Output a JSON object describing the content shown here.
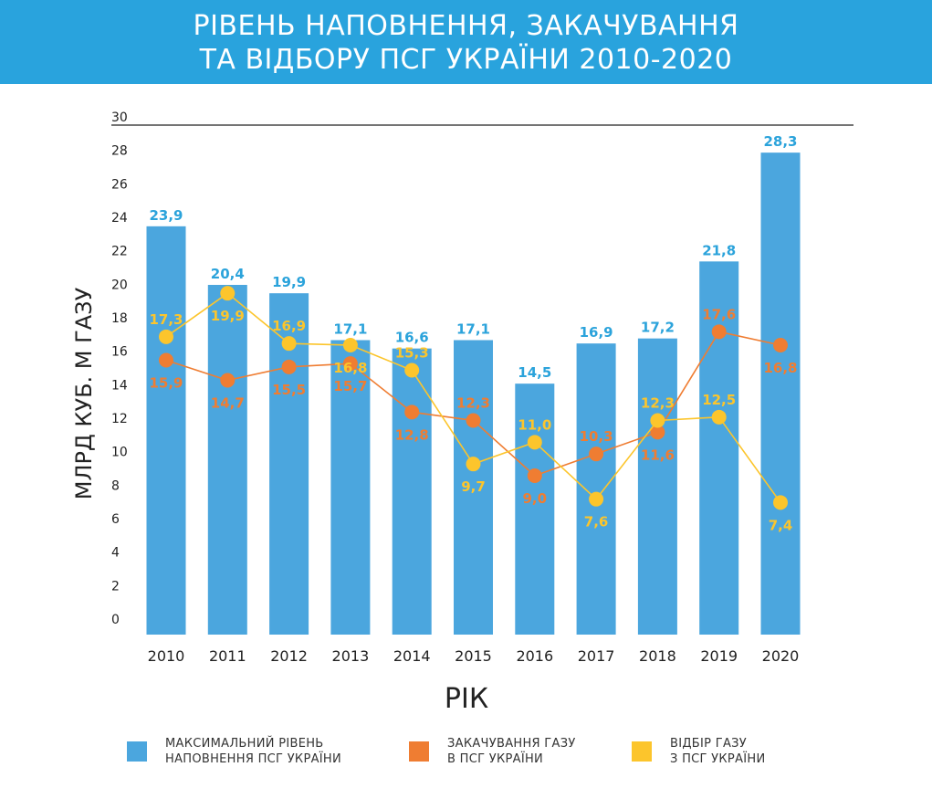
{
  "header": {
    "title_line1": "РІВЕНЬ НАПОВНЕННЯ, ЗАКАЧУВАННЯ",
    "title_line2": "ТА ВІДБОРУ ПСГ УКРАЇНИ 2010-2020"
  },
  "colors": {
    "banner": "#29a3dd",
    "bars": "#4ba6de",
    "bar_labels": "#2ba3db",
    "injection": "#ef7d32",
    "withdrawal": "#fcc52c"
  },
  "chart_data": {
    "type": "bar",
    "categories": [
      "2010",
      "2011",
      "2012",
      "2013",
      "2014",
      "2015",
      "2016",
      "2017",
      "2018",
      "2019",
      "2020"
    ],
    "xlabel": "РІК",
    "ylabel": "МЛРД КУБ. М ГАЗУ",
    "ylim": [
      0,
      30
    ],
    "yticks": [
      0,
      2,
      4,
      6,
      8,
      10,
      12,
      14,
      16,
      18,
      20,
      22,
      24,
      26,
      28,
      30
    ],
    "grid": false,
    "legend_position": "bottom",
    "series": [
      {
        "name": "МАКСИМАЛЬНИЙ РІВЕНЬ НАПОВНЕННЯ ПСГ УКРАЇНИ",
        "type": "bar",
        "values": [
          23.9,
          20.4,
          19.9,
          17.1,
          16.6,
          17.1,
          14.5,
          16.9,
          17.2,
          21.8,
          28.3
        ],
        "labels": [
          "23,9",
          "20,4",
          "19,9",
          "17,1",
          "16,6",
          "17,1",
          "14,5",
          "16,9",
          "17,2",
          "21,8",
          "28,3"
        ]
      },
      {
        "name": "ЗАКАЧУВАННЯ ГАЗУ В ПСГ УКРАЇНИ",
        "type": "line",
        "values": [
          15.9,
          14.7,
          15.5,
          15.7,
          12.8,
          12.3,
          9.0,
          10.3,
          11.6,
          17.6,
          16.8
        ],
        "labels": [
          "15,9",
          "14,7",
          "15,5",
          "15,7",
          "12,8",
          "12,3",
          "9,0",
          "10,3",
          "11,6",
          "17,6",
          "16,8"
        ]
      },
      {
        "name": "ВІДБІР ГАЗУ З ПСГ УКРАЇНИ",
        "type": "line",
        "values": [
          17.3,
          19.9,
          16.9,
          16.8,
          15.3,
          9.7,
          11.0,
          7.6,
          12.3,
          12.5,
          7.4
        ],
        "labels": [
          "17,3",
          "19,9",
          "16,9",
          "16,8",
          "15,3",
          "9,7",
          "11,0",
          "7,6",
          "12,3",
          "12,5",
          "7,4"
        ]
      }
    ]
  },
  "legend": [
    {
      "line1": "МАКСИМАЛЬНИЙ РІВЕНЬ",
      "line2": "НАПОВНЕННЯ ПСГ УКРАЇНИ"
    },
    {
      "line1": "ЗАКАЧУВАННЯ ГАЗУ",
      "line2": "В ПСГ УКРАЇНИ"
    },
    {
      "line1": "ВІДБІР ГАЗУ",
      "line2": "З ПСГ УКРАЇНИ"
    }
  ]
}
